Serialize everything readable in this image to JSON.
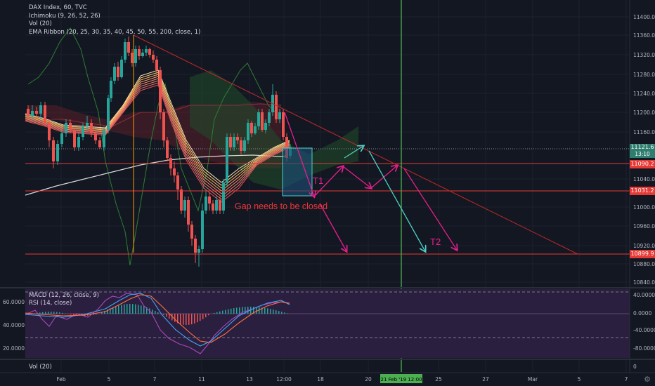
{
  "legend": {
    "symbol": "DAX Index, 60, TVC",
    "indicators": [
      "Ichimoku (9, 26, 52, 26)",
      "Vol (20)",
      "EMA Ribbon (20, 25, 30, 35, 40, 45, 50, 55, 200, close, 1)"
    ]
  },
  "price_axis": {
    "ticks": [
      "11400.00",
      "11360.00",
      "11320.00",
      "11280.00",
      "11240.00",
      "11200.00",
      "11160.00",
      "11040.00",
      "11000.00",
      "10960.00",
      "10920.00",
      "10880.00",
      "10840.00"
    ]
  },
  "price_badges": {
    "last": {
      "value": "11121.6",
      "sub": "13:10",
      "color": "#2e7d6e"
    },
    "level1": {
      "value": "11090.2",
      "color": "#e53935"
    },
    "level2": {
      "value": "11031.2",
      "color": "#e53935"
    },
    "level3": {
      "value": "10899.9",
      "color": "#e53935"
    }
  },
  "annotations": {
    "gap": "Gap needs to be closed",
    "t1": "T1",
    "t2": "T2"
  },
  "macd_pane": {
    "legend_macd": "MACD (12, 26, close, 9)",
    "legend_rsi": "RSI (14, close)",
    "left_ticks": [
      "60.0000",
      "40.0000",
      "20.0000"
    ],
    "right_ticks": [
      "40.0000",
      "0.0000",
      "-40.0000",
      "-80.0000"
    ]
  },
  "vol_pane": {
    "legend": "Vol (20)",
    "right_tick": "0"
  },
  "time_axis": {
    "labels": [
      "Feb",
      "5",
      "7",
      "11",
      "13",
      "12:00",
      "18",
      "20",
      "25",
      "27",
      "Mar",
      "5",
      "7"
    ],
    "crosshair": "21 Feb '19   12:00"
  },
  "chart_data": {
    "type": "candlestick",
    "title": "DAX Index, 60, TVC",
    "ylim": [
      10820,
      11420
    ],
    "horizontal_levels": [
      11090.2,
      11031.2,
      10899.9
    ],
    "last_price": 11121.6
  },
  "colors": {
    "up": "#26a69a",
    "down": "#ef5350",
    "background": "#131722",
    "level_line": "#e53935",
    "crosshair": "#4caf50",
    "arrow_magenta": "#e91e8c",
    "arrow_cyan": "#4dd0c4"
  }
}
